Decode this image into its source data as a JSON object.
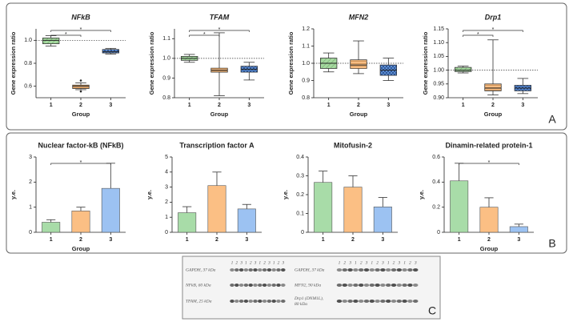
{
  "chart_data": [
    {
      "type": "box",
      "title": "NFkB",
      "x_label": "Group",
      "y_label": "Gene expression ratio",
      "categories": [
        "1",
        "2",
        "3"
      ],
      "colors": [
        "#a6d9a0",
        "#f7bd84",
        "#5d8fd6"
      ],
      "boxes": [
        {
          "min": 0.95,
          "q1": 0.97,
          "median": 1.0,
          "q3": 1.02,
          "max": 1.04,
          "outliers": []
        },
        {
          "min": 0.57,
          "q1": 0.58,
          "median": 0.6,
          "q3": 0.61,
          "max": 0.63,
          "outliers": [
            0.65,
            0.555
          ]
        },
        {
          "min": 0.88,
          "q1": 0.89,
          "median": 0.9,
          "q3": 0.92,
          "max": 0.93,
          "outliers": []
        }
      ],
      "reference_line": 1,
      "ylim": [
        0.5,
        1.1
      ],
      "yticks": [
        0.6,
        0.8,
        {
          "value": 1,
          "label": "1.0"
        }
      ],
      "significance": [
        {
          "between": [
            "1",
            "2"
          ],
          "label": "*"
        },
        {
          "between": [
            "1",
            "3"
          ],
          "label": "*"
        }
      ]
    },
    {
      "type": "box",
      "title": "TFAM",
      "x_label": "Group",
      "y_label": "Gene expression ratio",
      "categories": [
        "1",
        "2",
        "3"
      ],
      "colors": [
        "#a6d9a0",
        "#f7bd84",
        "#5d8fd6"
      ],
      "boxes": [
        {
          "min": 0.98,
          "q1": 0.99,
          "median": 1.0,
          "q3": 1.01,
          "max": 1.02,
          "outliers": []
        },
        {
          "min": 0.81,
          "q1": 0.93,
          "median": 0.94,
          "q3": 0.95,
          "max": 1.13,
          "outliers": []
        },
        {
          "min": 0.89,
          "q1": 0.93,
          "median": 0.945,
          "q3": 0.96,
          "max": 0.98,
          "outliers": []
        }
      ],
      "reference_line": 1,
      "ylim": [
        0.8,
        1.15
      ],
      "yticks": [
        0.8,
        0.9,
        {
          "value": 1,
          "label": "1.0"
        },
        1.1
      ],
      "significance": [
        {
          "between": [
            "1",
            "2"
          ],
          "label": "*"
        },
        {
          "between": [
            "1",
            "3"
          ],
          "label": "*"
        }
      ]
    },
    {
      "type": "box",
      "title": "MFN2",
      "x_label": "Group",
      "y_label": "Gene expression ratio",
      "categories": [
        "1",
        "2",
        "3"
      ],
      "colors": [
        "#a6d9a0",
        "#f7bd84",
        "#5d8fd6"
      ],
      "boxes": [
        {
          "min": 0.95,
          "q1": 0.97,
          "median": 1.0,
          "q3": 1.03,
          "max": 1.06,
          "outliers": []
        },
        {
          "min": 0.94,
          "q1": 0.97,
          "median": 0.99,
          "q3": 1.02,
          "max": 1.13,
          "outliers": []
        },
        {
          "min": 0.9,
          "q1": 0.93,
          "median": 0.96,
          "q3": 0.99,
          "max": 1.03,
          "outliers": []
        }
      ],
      "reference_line": 1,
      "ylim": [
        0.8,
        1.2
      ],
      "yticks": [
        0.8,
        0.9,
        {
          "value": 1,
          "label": "1.0"
        },
        1.1,
        1.2
      ],
      "significance": []
    },
    {
      "type": "box",
      "title": "Drp1",
      "x_label": "Group",
      "y_label": "Gene expression ratio",
      "categories": [
        "1",
        "2",
        "3"
      ],
      "colors": [
        "#a6d9a0",
        "#f7bd84",
        "#5d8fd6"
      ],
      "boxes": [
        {
          "min": 0.99,
          "q1": 0.995,
          "median": 1.0,
          "q3": 1.01,
          "max": 1.015,
          "outliers": []
        },
        {
          "min": 0.91,
          "q1": 0.925,
          "median": 0.935,
          "q3": 0.95,
          "max": 1.11,
          "outliers": []
        },
        {
          "min": 0.915,
          "q1": 0.925,
          "median": 0.935,
          "q3": 0.945,
          "max": 0.97,
          "outliers": []
        }
      ],
      "reference_line": 1,
      "ylim": [
        0.9,
        1.15
      ],
      "yticks": [
        {
          "value": 0.9,
          "label": "0.90"
        },
        0.95,
        {
          "value": 1,
          "label": "1.00"
        },
        1.05,
        {
          "value": 1.1,
          "label": "1.10"
        },
        1.15
      ],
      "significance": [
        {
          "between": [
            "1",
            "2"
          ],
          "label": "*"
        },
        {
          "between": [
            "1",
            "3"
          ],
          "label": "*"
        }
      ]
    },
    {
      "type": "bar",
      "title": "Nuclear factor-kB (NFkB)",
      "x_label": "Group",
      "y_label": "y.e.",
      "categories": [
        "1",
        "2",
        "3"
      ],
      "colors": [
        "#a8dca8",
        "#fbbf84",
        "#9cc2f2"
      ],
      "values": [
        0.4,
        0.85,
        1.75
      ],
      "errors": [
        0.1,
        0.15,
        1.0
      ],
      "ylim": [
        0,
        3
      ],
      "yticks": [
        0,
        1,
        2,
        3
      ],
      "significance": [
        {
          "between": [
            "1",
            "3"
          ],
          "label": "*"
        }
      ]
    },
    {
      "type": "bar",
      "title": "Transcription factor A",
      "y_label": "y.e.",
      "categories": [
        "1",
        "2",
        "3"
      ],
      "colors": [
        "#a8dca8",
        "#fbbf84",
        "#9cc2f2"
      ],
      "values": [
        1.3,
        3.1,
        1.55
      ],
      "errors": [
        0.4,
        0.9,
        0.3
      ],
      "ylim": [
        0,
        5
      ],
      "yticks": [
        0,
        1,
        2,
        3,
        4,
        5
      ],
      "significance": []
    },
    {
      "type": "bar",
      "title": "Mitofusin-2",
      "y_label": "y.e.",
      "categories": [
        "1",
        "2",
        "3"
      ],
      "colors": [
        "#a8dca8",
        "#fbbf84",
        "#9cc2f2"
      ],
      "values": [
        0.265,
        0.24,
        0.135
      ],
      "errors": [
        0.06,
        0.06,
        0.05
      ],
      "ylim": [
        0,
        0.4
      ],
      "yticks": [
        0,
        0.1,
        0.2,
        0.3,
        0.4
      ],
      "significance": []
    },
    {
      "type": "bar",
      "title": "Dinamin-related protein-1",
      "x_label": "Group",
      "y_label": "y.e.",
      "categories": [
        "1",
        "2",
        "3"
      ],
      "colors": [
        "#a8dca8",
        "#fbbf84",
        "#9cc2f2"
      ],
      "values": [
        0.41,
        0.2,
        0.045
      ],
      "errors": [
        0.14,
        0.075,
        0.02
      ],
      "ylim": [
        0,
        0.6
      ],
      "yticks": [
        0,
        0.2,
        0.4,
        0.6
      ],
      "significance": [
        {
          "between": [
            "1",
            "3"
          ],
          "label": "*"
        }
      ]
    }
  ],
  "panels": [
    "A",
    "B",
    "C"
  ],
  "blot": {
    "left": {
      "lanes": [
        1,
        2,
        3,
        1,
        2,
        3,
        1,
        2,
        3,
        1,
        2,
        3
      ],
      "labels": [
        [
          "GAPDH, 37 kDa"
        ],
        [
          "NFkB, 60 kDa"
        ],
        [
          "TFAM, 25 kDa"
        ]
      ]
    },
    "right": {
      "lanes": [
        1,
        2,
        3,
        1,
        2,
        3,
        1,
        2,
        3,
        1,
        2,
        3,
        1,
        2,
        3
      ],
      "labels": [
        [
          "GAPDH, 37 kDa"
        ],
        [
          "MFN2, 90 kDa"
        ],
        [
          "Drp1 (DNM1L),",
          "80 kDa"
        ]
      ]
    }
  }
}
